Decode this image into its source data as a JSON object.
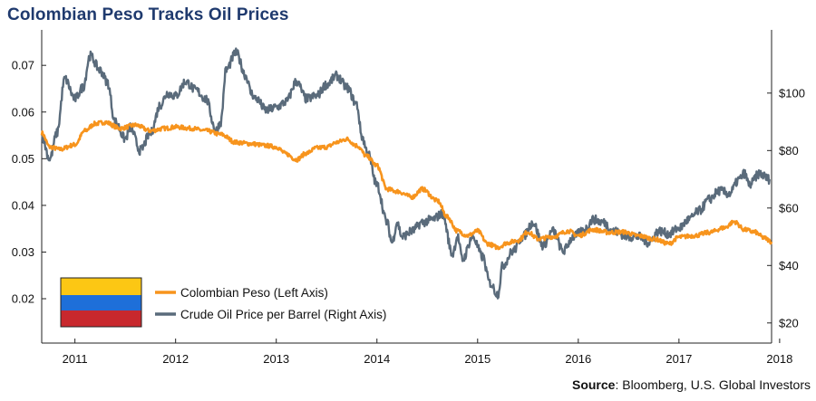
{
  "title": "Colombian Peso Tracks Oil Prices",
  "source_label": "Source",
  "source_text": ": Bloomberg, U.S. Global Investors",
  "colors": {
    "peso": "#f7941d",
    "oil": "#5a6b7b",
    "title": "#1f3a6e",
    "flag_yellow": "#fcc714",
    "flag_blue": "#1e6fd9",
    "flag_red": "#c8282d"
  },
  "chart_data": {
    "type": "line",
    "title": "Colombian Peso Tracks Oil Prices",
    "x_ticks": [
      "2011",
      "2012",
      "2013",
      "2014",
      "2015",
      "2016",
      "2017",
      "2018"
    ],
    "xlim": [
      2010.67,
      2017.92
    ],
    "y_left": {
      "label": "Colombian Peso (Left Axis)",
      "lim": [
        0.0105,
        0.0776
      ],
      "ticks": [
        "0.02",
        "0.03",
        "0.04",
        "0.05",
        "0.06",
        "0.07"
      ]
    },
    "y_right": {
      "label": "Crude Oil Price per Barrel (Right Axis)",
      "lim": [
        13,
        122
      ],
      "ticks": [
        "$20",
        "$40",
        "$60",
        "$80",
        "$100"
      ]
    },
    "legend": [
      "Colombian Peso (Left Axis)",
      "Crude Oil Price per Barrel (Right Axis)"
    ],
    "series": [
      {
        "name": "Colombian Peso (Left Axis)",
        "axis": "left",
        "x": [
          2010.67,
          2010.75,
          2010.85,
          2011.0,
          2011.1,
          2011.2,
          2011.3,
          2011.45,
          2011.6,
          2011.75,
          2011.9,
          2012.0,
          2012.15,
          2012.3,
          2012.45,
          2012.6,
          2012.75,
          2012.9,
          2013.0,
          2013.1,
          2013.2,
          2013.3,
          2013.4,
          2013.5,
          2013.6,
          2013.7,
          2013.8,
          2013.9,
          2014.0,
          2014.1,
          2014.2,
          2014.35,
          2014.45,
          2014.6,
          2014.7,
          2014.8,
          2014.9,
          2015.0,
          2015.1,
          2015.2,
          2015.3,
          2015.4,
          2015.5,
          2015.6,
          2015.75,
          2015.9,
          2016.0,
          2016.15,
          2016.3,
          2016.45,
          2016.6,
          2016.75,
          2016.9,
          2017.0,
          2017.15,
          2017.3,
          2017.45,
          2017.55,
          2017.65,
          2017.75,
          2017.85,
          2017.92
        ],
        "values": [
          0.0555,
          0.0525,
          0.052,
          0.053,
          0.056,
          0.0575,
          0.0578,
          0.0565,
          0.0572,
          0.056,
          0.0565,
          0.0568,
          0.0565,
          0.056,
          0.0552,
          0.0535,
          0.0532,
          0.0528,
          0.0525,
          0.051,
          0.0498,
          0.0512,
          0.0523,
          0.0525,
          0.0535,
          0.0542,
          0.0528,
          0.0505,
          0.0485,
          0.0435,
          0.043,
          0.0418,
          0.0435,
          0.041,
          0.0375,
          0.0345,
          0.0335,
          0.0345,
          0.0318,
          0.031,
          0.032,
          0.0325,
          0.0343,
          0.0328,
          0.0333,
          0.0345,
          0.0335,
          0.0348,
          0.0342,
          0.0343,
          0.0335,
          0.0328,
          0.0318,
          0.0332,
          0.0335,
          0.0342,
          0.0352,
          0.0365,
          0.0348,
          0.0343,
          0.033,
          0.0322
        ]
      },
      {
        "name": "Crude Oil Price per Barrel (Right Axis)",
        "axis": "right",
        "x": [
          2010.67,
          2010.75,
          2010.82,
          2010.9,
          2011.0,
          2011.08,
          2011.15,
          2011.25,
          2011.32,
          2011.4,
          2011.5,
          2011.55,
          2011.65,
          2011.75,
          2011.85,
          2011.92,
          2012.0,
          2012.1,
          2012.2,
          2012.3,
          2012.4,
          2012.45,
          2012.5,
          2012.6,
          2012.7,
          2012.75,
          2012.8,
          2012.9,
          2013.0,
          2013.1,
          2013.2,
          2013.3,
          2013.4,
          2013.5,
          2013.6,
          2013.7,
          2013.8,
          2013.85,
          2013.9,
          2014.0,
          2014.1,
          2014.15,
          2014.2,
          2014.25,
          2014.35,
          2014.45,
          2014.55,
          2014.65,
          2014.75,
          2014.8,
          2014.85,
          2014.95,
          2015.05,
          2015.12,
          2015.2,
          2015.25,
          2015.35,
          2015.45,
          2015.55,
          2015.65,
          2015.75,
          2015.85,
          2015.95,
          2016.05,
          2016.15,
          2016.25,
          2016.35,
          2016.5,
          2016.6,
          2016.7,
          2016.8,
          2016.9,
          2017.0,
          2017.1,
          2017.2,
          2017.3,
          2017.4,
          2017.5,
          2017.6,
          2017.65,
          2017.7,
          2017.8,
          2017.9
        ],
        "values": [
          85,
          77,
          86,
          105,
          98,
          102,
          113,
          108,
          104,
          90,
          84,
          88,
          80,
          86,
          96,
          100,
          99,
          104,
          101,
          98,
          87,
          90,
          108,
          114,
          106,
          100,
          98,
          94,
          95,
          97,
          104,
          98,
          99,
          103,
          106,
          102,
          96,
          85,
          80,
          68,
          55,
          48,
          55,
          50,
          52,
          55,
          56,
          58,
          44,
          50,
          42,
          50,
          43,
          34,
          30,
          40,
          45,
          50,
          55,
          47,
          52,
          45,
          50,
          52,
          56,
          55,
          52,
          50,
          50,
          48,
          52,
          51,
          53,
          56,
          59,
          63,
          66,
          65,
          70,
          72,
          68,
          72,
          70
        ]
      }
    ]
  },
  "legend": {
    "peso_label": "Colombian Peso (Left Axis)",
    "oil_label": "Crude Oil Price per Barrel (Right Axis)"
  }
}
